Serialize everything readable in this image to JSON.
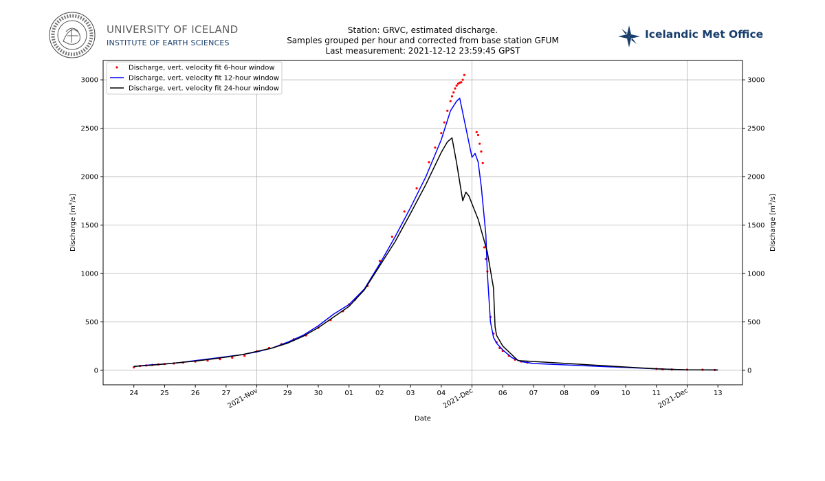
{
  "header": {
    "university_name": "UNIVERSITY OF ICELAND",
    "university_sub": "INSTITUTE OF EARTH SCIENCES",
    "seal_text": "UNIVERSITATIS ISLANDIAE SIGILLUM",
    "met_office_name": "Icelandic Met Office"
  },
  "chart_data": {
    "type": "line",
    "title_lines": [
      "Station: GRVC, estimated discharge.",
      "Samples grouped per hour and corrected from base station GFUM",
      "Last measurement: 2021-12-12 23:59:45 GPST"
    ],
    "xlabel": "Date",
    "ylabel": "Discharge [m$^3$/s]",
    "ylabel_main": "Discharge [m",
    "ylabel_sup": "3",
    "ylabel_tail": "/s]",
    "x_unit": "days relative to 2021-11-24 00:00",
    "xlim": [
      -1,
      19.8
    ],
    "ylim": [
      -150,
      3200
    ],
    "y_ticks": [
      0,
      500,
      1000,
      1500,
      2000,
      2500,
      3000
    ],
    "x_ticks": [
      {
        "x": 0,
        "label": "24"
      },
      {
        "x": 1,
        "label": "25"
      },
      {
        "x": 2,
        "label": "26"
      },
      {
        "x": 3,
        "label": "27"
      },
      {
        "x": 5,
        "label": "29"
      },
      {
        "x": 6,
        "label": "30"
      },
      {
        "x": 7,
        "label": "01"
      },
      {
        "x": 8,
        "label": "02"
      },
      {
        "x": 9,
        "label": "03"
      },
      {
        "x": 10,
        "label": "04"
      },
      {
        "x": 12,
        "label": "06"
      },
      {
        "x": 13,
        "label": "07"
      },
      {
        "x": 14,
        "label": "08"
      },
      {
        "x": 15,
        "label": "09"
      },
      {
        "x": 16,
        "label": "10"
      },
      {
        "x": 17,
        "label": "11"
      },
      {
        "x": 19,
        "label": "13"
      }
    ],
    "rotated_labels": [
      {
        "x": 4,
        "label": "2021-Nov"
      },
      {
        "x": 11,
        "label": "2021-Dec"
      },
      {
        "x": 18,
        "label": "2021-Dec"
      }
    ],
    "grid_x": [
      4,
      11,
      18
    ],
    "grid": true,
    "legend_position": "top-left",
    "series": [
      {
        "name": "Discharge, vert. velocity fit 6-hour window",
        "style": "points",
        "color": "#ff0000",
        "x": [
          0.0,
          0.2,
          0.4,
          0.6,
          0.8,
          1.0,
          1.3,
          1.6,
          2.0,
          2.4,
          2.8,
          3.2,
          3.6,
          4.0,
          4.4,
          4.8,
          5.2,
          5.6,
          6.0,
          6.4,
          6.8,
          7.0,
          7.2,
          7.6,
          8.0,
          8.4,
          8.8,
          9.2,
          9.6,
          9.8,
          10.0,
          10.1,
          10.2,
          10.3,
          10.35,
          10.4,
          10.45,
          10.5,
          10.55,
          10.6,
          10.65,
          10.7,
          10.75,
          11.15,
          11.2,
          11.25,
          11.3,
          11.35,
          11.4,
          11.45,
          11.5,
          11.6,
          11.7,
          11.8,
          11.9,
          12.0,
          12.2,
          12.4,
          12.6,
          12.8,
          17.0,
          17.2,
          17.5,
          18.0,
          18.5,
          18.9
        ],
        "y": [
          30,
          45,
          50,
          55,
          60,
          65,
          70,
          80,
          90,
          100,
          115,
          130,
          150,
          195,
          230,
          270,
          320,
          360,
          440,
          520,
          610,
          680,
          730,
          870,
          1130,
          1380,
          1640,
          1880,
          2150,
          2300,
          2450,
          2560,
          2680,
          2780,
          2830,
          2870,
          2910,
          2940,
          2960,
          2970,
          2975,
          3000,
          3050,
          2460,
          2430,
          2340,
          2260,
          2140,
          1270,
          1150,
          1020,
          550,
          380,
          290,
          230,
          200,
          150,
          110,
          90,
          80,
          15,
          10,
          8,
          6,
          5,
          3
        ]
      },
      {
        "name": "Discharge, vert. velocity fit 12-hour window",
        "style": "line",
        "color": "#0000ff",
        "x": [
          0.0,
          0.5,
          1.0,
          1.5,
          2.0,
          2.5,
          3.0,
          3.5,
          4.0,
          4.5,
          5.0,
          5.5,
          6.0,
          6.5,
          7.0,
          7.5,
          8.0,
          8.5,
          9.0,
          9.5,
          10.0,
          10.3,
          10.5,
          10.6,
          11.0,
          11.1,
          11.2,
          11.3,
          11.45,
          11.5,
          11.6,
          11.7,
          11.8,
          12.0,
          12.3,
          12.6,
          13.0,
          17.0,
          18.0,
          19.0
        ],
        "y": [
          40,
          55,
          65,
          80,
          100,
          120,
          140,
          160,
          190,
          230,
          290,
          360,
          460,
          580,
          680,
          840,
          1100,
          1380,
          1680,
          2000,
          2380,
          2680,
          2780,
          2810,
          2200,
          2240,
          2150,
          1900,
          1400,
          1000,
          500,
          340,
          280,
          210,
          130,
          90,
          70,
          15,
          5,
          3
        ]
      },
      {
        "name": "Discharge, vert. velocity fit 24-hour window",
        "style": "line",
        "color": "#000000",
        "x": [
          0.0,
          0.5,
          1.0,
          1.5,
          2.0,
          2.5,
          3.0,
          3.5,
          4.0,
          4.5,
          5.0,
          5.5,
          6.0,
          6.5,
          7.0,
          7.5,
          8.0,
          8.5,
          9.0,
          9.5,
          10.0,
          10.2,
          10.35,
          10.5,
          10.7,
          10.8,
          10.9,
          11.0,
          11.2,
          11.5,
          11.7,
          11.75,
          11.8,
          12.0,
          12.5,
          17.0,
          17.5,
          18.0,
          19.0
        ],
        "y": [
          40,
          50,
          65,
          80,
          95,
          115,
          135,
          160,
          195,
          230,
          280,
          350,
          440,
          550,
          660,
          830,
          1080,
          1330,
          1620,
          1920,
          2250,
          2360,
          2400,
          2140,
          1750,
          1840,
          1800,
          1720,
          1560,
          1220,
          850,
          450,
          360,
          250,
          100,
          15,
          10,
          5,
          3
        ]
      }
    ]
  }
}
